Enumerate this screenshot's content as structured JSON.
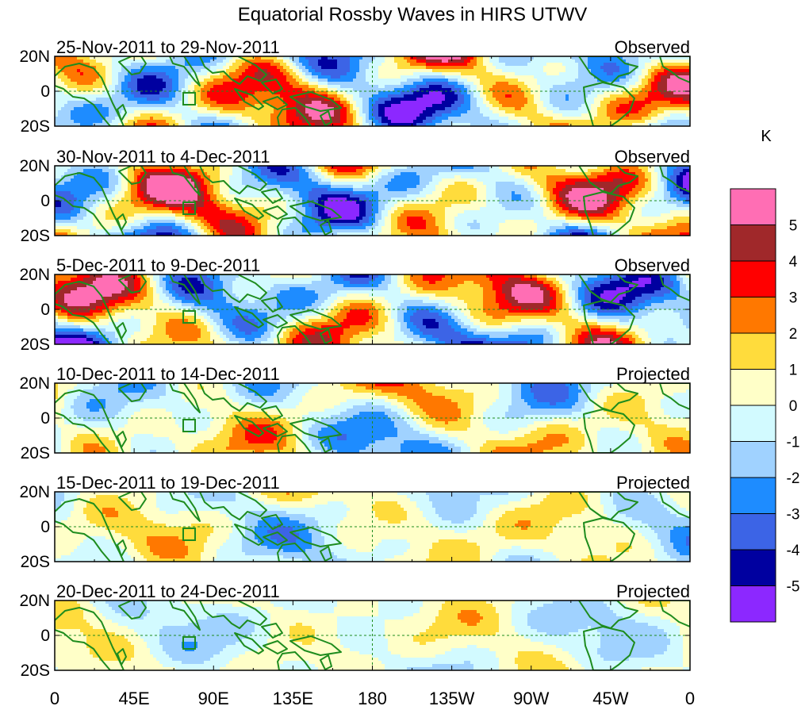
{
  "title": "Equatorial Rossby Waves in HIRS UTWV",
  "colorbar": {
    "unit": "K",
    "colors": [
      "#ff6eb4",
      "#a0282a",
      "#ff0000",
      "#ff7800",
      "#ffdc3c",
      "#ffffc8",
      "#d2faff",
      "#a0d2ff",
      "#1e8cff",
      "#3c64e6",
      "#0000a0",
      "#8c28ff"
    ],
    "labels": [
      "5",
      "4",
      "3",
      "2",
      "1",
      "0",
      "-1",
      "-2",
      "-3",
      "-4",
      "-5"
    ]
  },
  "lat_labels": [
    "20N",
    "0",
    "20S"
  ],
  "lon_labels": [
    "0",
    "45E",
    "90E",
    "135E",
    "180",
    "135W",
    "90W",
    "45W",
    "0"
  ],
  "panels": [
    {
      "date": "25-Nov-2011 to 29-Nov-2011",
      "status": "Observed",
      "strength": 1.0,
      "seed": 1
    },
    {
      "date": "30-Nov-2011 to 4-Dec-2011",
      "status": "Observed",
      "strength": 1.0,
      "seed": 2
    },
    {
      "date": "5-Dec-2011 to 9-Dec-2011",
      "status": "Observed",
      "strength": 0.95,
      "seed": 3
    },
    {
      "date": "10-Dec-2011 to 14-Dec-2011",
      "status": "Projected",
      "strength": 0.6,
      "seed": 4
    },
    {
      "date": "15-Dec-2011 to 19-Dec-2011",
      "status": "Projected",
      "strength": 0.45,
      "seed": 5
    },
    {
      "date": "20-Dec-2011 to 24-Dec-2011",
      "status": "Projected",
      "strength": 0.35,
      "seed": 6
    }
  ]
}
